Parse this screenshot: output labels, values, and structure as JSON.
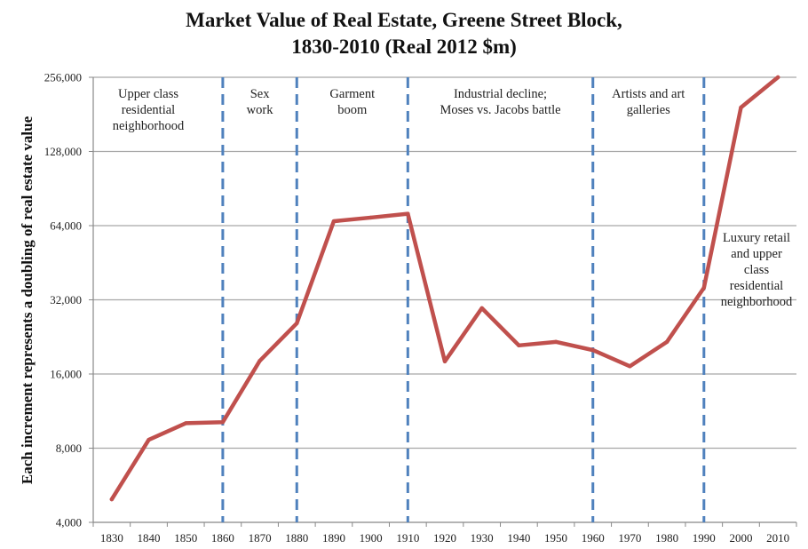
{
  "chart_data": {
    "type": "line",
    "title": [
      "Market Value of Real Estate, Greene Street Block,",
      "1830-2010 (Real 2012 $m)"
    ],
    "xlabel": "",
    "ylabel": "Each increment represents a doubling of real estate value",
    "yscale": "log2",
    "ylim": [
      4000,
      256000
    ],
    "yticks": [
      4000,
      8000,
      16000,
      32000,
      64000,
      128000,
      256000
    ],
    "ytick_labels": [
      "4,000",
      "8,000",
      "16,000",
      "32,000",
      "64,000",
      "128,000",
      "256,000"
    ],
    "grid": true,
    "categories": [
      "1830",
      "1840",
      "1850",
      "1860",
      "1870",
      "1880",
      "1890",
      "1900",
      "1910",
      "1920",
      "1930",
      "1940",
      "1950",
      "1960",
      "1970",
      "1980",
      "1990",
      "2000",
      "2010"
    ],
    "series": [
      {
        "name": "Market value",
        "color": "#c0504d",
        "values": [
          4960,
          8650,
          10100,
          10200,
          18100,
          25700,
          66700,
          69000,
          71500,
          18000,
          29600,
          20900,
          21600,
          20000,
          17200,
          21600,
          35800,
          193000,
          256000
        ]
      }
    ],
    "era_boundaries": [
      "1860",
      "1880",
      "1910",
      "1960",
      "1990"
    ],
    "era_line_color": "#4f81bd",
    "annotations": [
      {
        "lines": [
          "Upper class",
          "residential",
          "neighborhood"
        ],
        "from": "1830",
        "to": "1860"
      },
      {
        "lines": [
          "Sex",
          "work"
        ],
        "from": "1860",
        "to": "1880"
      },
      {
        "lines": [
          "Garment",
          "boom"
        ],
        "from": "1880",
        "to": "1910"
      },
      {
        "lines": [
          "Industrial decline;",
          "Moses vs. Jacobs battle"
        ],
        "from": "1910",
        "to": "1960"
      },
      {
        "lines": [
          "Artists and art",
          "galleries"
        ],
        "from": "1960",
        "to": "1990"
      },
      {
        "lines": [
          "Luxury retail",
          "and upper",
          "class",
          "residential",
          "neighborhood"
        ],
        "from": "1990",
        "to": "2010"
      }
    ]
  }
}
